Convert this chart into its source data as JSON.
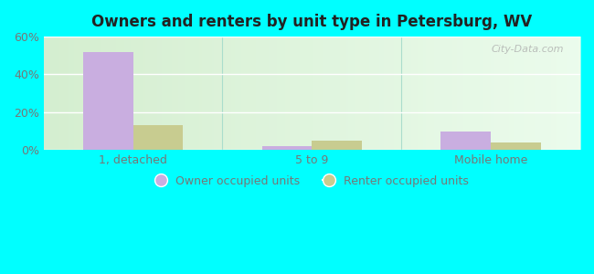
{
  "title": "Owners and renters by unit type in Petersburg, WV",
  "categories": [
    "1, detached",
    "5 to 9",
    "Mobile home"
  ],
  "owner_values": [
    52,
    2,
    10
  ],
  "renter_values": [
    13,
    5,
    4
  ],
  "owner_color": "#c9aee0",
  "renter_color": "#c8cc90",
  "ylim": [
    0,
    60
  ],
  "yticks": [
    0,
    20,
    40,
    60
  ],
  "ytick_labels": [
    "0%",
    "20%",
    "40%",
    "60%"
  ],
  "legend_owner": "Owner occupied units",
  "legend_renter": "Renter occupied units",
  "bar_width": 0.28,
  "outer_bg": "#00ffff",
  "plot_bg_left": "#d8edcc",
  "plot_bg_right": "#e8f8f0",
  "watermark": "City-Data.com",
  "grid_color": "#ffffff",
  "separator_color": "#aaddcc",
  "tick_color": "#777777",
  "title_color": "#222222"
}
